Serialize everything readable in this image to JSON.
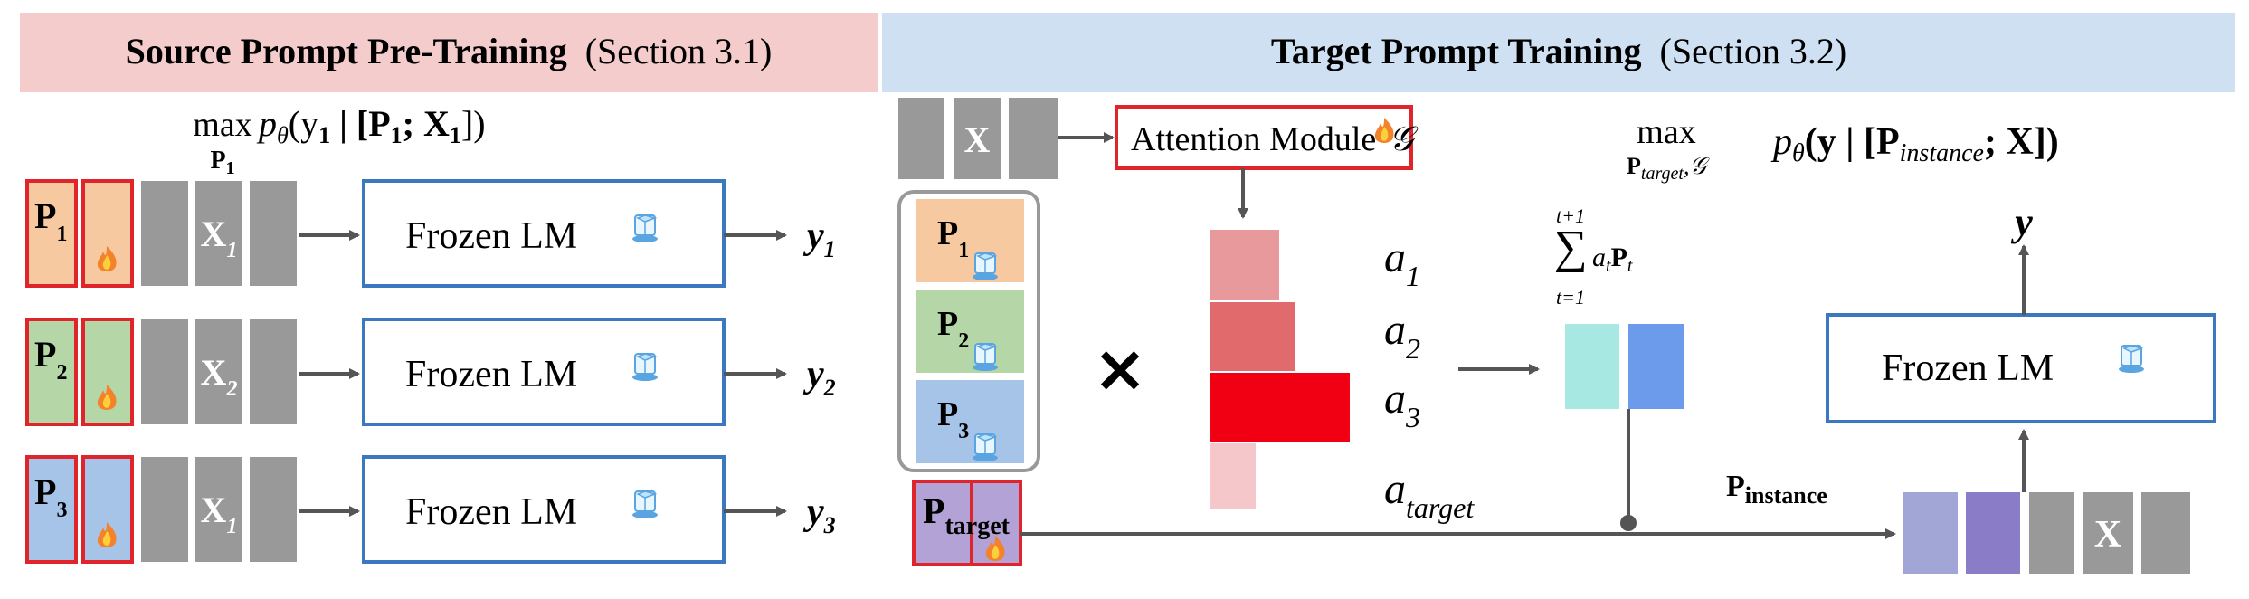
{
  "left_header": {
    "title": "Source Prompt Pre-Training",
    "section": "(Section 3.1)"
  },
  "right_header": {
    "title": "Target Prompt Training",
    "section": "(Section 3.2)"
  },
  "left_objective": {
    "max": "max",
    "sub": "P",
    "sub_index": "1",
    "expr": "p",
    "expr_sub": "θ",
    "expr_rest": "(y",
    "expr_rest_sub": "1",
    "expr_tail": " | [P",
    "expr_tail_sub": "1",
    "expr_end": "; X",
    "expr_end_sub": "1",
    "expr_close": "])"
  },
  "rows": [
    {
      "prompt": "P",
      "prompt_index": "1",
      "input": "X",
      "input_index": "1",
      "lm": "Frozen LM",
      "output": "y",
      "output_index": "1",
      "color": "#f7c9a0"
    },
    {
      "prompt": "P",
      "prompt_index": "2",
      "input": "X",
      "input_index": "2",
      "lm": "Frozen LM",
      "output": "y",
      "output_index": "2",
      "color": "#b5d6a7"
    },
    {
      "prompt": "P",
      "prompt_index": "3",
      "input": "X",
      "input_index": "1",
      "lm": "Frozen LM",
      "output": "y",
      "output_index": "3",
      "color": "#a6c4e8"
    }
  ],
  "target": {
    "input_token": "X",
    "attention_label": "Attention Module",
    "attention_symbol": "𝒢",
    "objective_max": "max",
    "objective_sub": "P",
    "objective_sub_sub": "target",
    "objective_sub_tail": ",𝒢",
    "objective_expr": "p",
    "objective_theta": "θ",
    "objective_body": "(y | [P",
    "objective_inst": "instance",
    "objective_end": "; X])",
    "source_prompts": [
      {
        "label": "P",
        "index": "1",
        "color": "#f7c9a0"
      },
      {
        "label": "P",
        "index": "2",
        "color": "#b5d6a7"
      },
      {
        "label": "P",
        "index": "3",
        "color": "#a6c4e8"
      }
    ],
    "target_prompt": {
      "label": "P",
      "index": "target",
      "color": "#b2a2d6"
    },
    "times": "×",
    "weights": [
      {
        "label": "a",
        "index": "1"
      },
      {
        "label": "a",
        "index": "2"
      },
      {
        "label": "a",
        "index": "3"
      },
      {
        "label": "a",
        "index": "target"
      }
    ],
    "sum_top": "t+1",
    "sum_bottom": "t=1",
    "sum_expr": "a",
    "sum_expr_sub": "t",
    "sum_expr_p": "P",
    "sum_expr_p_sub": "t",
    "instance_label": "P",
    "instance_sub": "instance",
    "lm": "Frozen LM",
    "output": "y",
    "final_input": "X"
  },
  "colors": {
    "left_header_bg": "#f5cccc",
    "right_header_bg": "#cfe0f3",
    "frame_red": "#e0242c",
    "lm_blue": "#3b78bf",
    "gray_token": "#999999"
  }
}
